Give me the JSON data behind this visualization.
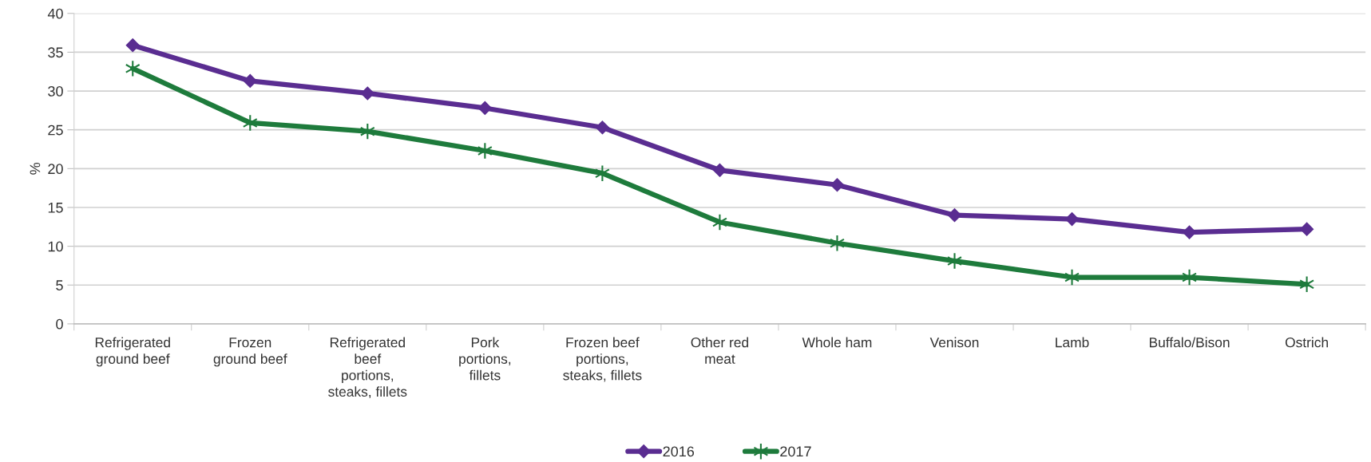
{
  "chart_data": {
    "type": "line",
    "categories": [
      "Refrigerated\nground beef",
      "Frozen\nground beef",
      "Refrigerated\nbeef\nportions,\nsteaks, fillets",
      "Pork\nportions,\nfillets",
      "Frozen beef\nportions,\nsteaks, fillets",
      "Other red\nmeat",
      "Whole ham",
      "Venison",
      "Lamb",
      "Buffalo/Bison",
      "Ostrich"
    ],
    "series": [
      {
        "name": "2016",
        "color": "#5a2d91",
        "marker": "diamond",
        "values": [
          35.9,
          31.3,
          29.7,
          27.8,
          25.3,
          19.8,
          17.9,
          14.0,
          13.5,
          11.8,
          12.2
        ]
      },
      {
        "name": "2017",
        "color": "#1e7b3c",
        "marker": "cross",
        "values": [
          32.9,
          25.9,
          24.8,
          22.3,
          19.4,
          13.1,
          10.4,
          8.1,
          6.0,
          6.0,
          5.1
        ]
      }
    ],
    "ylabel": "%",
    "ylim": [
      0,
      40
    ],
    "yticks": [
      0,
      5,
      10,
      15,
      20,
      25,
      30,
      35,
      40
    ],
    "grid": "y",
    "legend": "bottom",
    "line_style": "solid"
  }
}
